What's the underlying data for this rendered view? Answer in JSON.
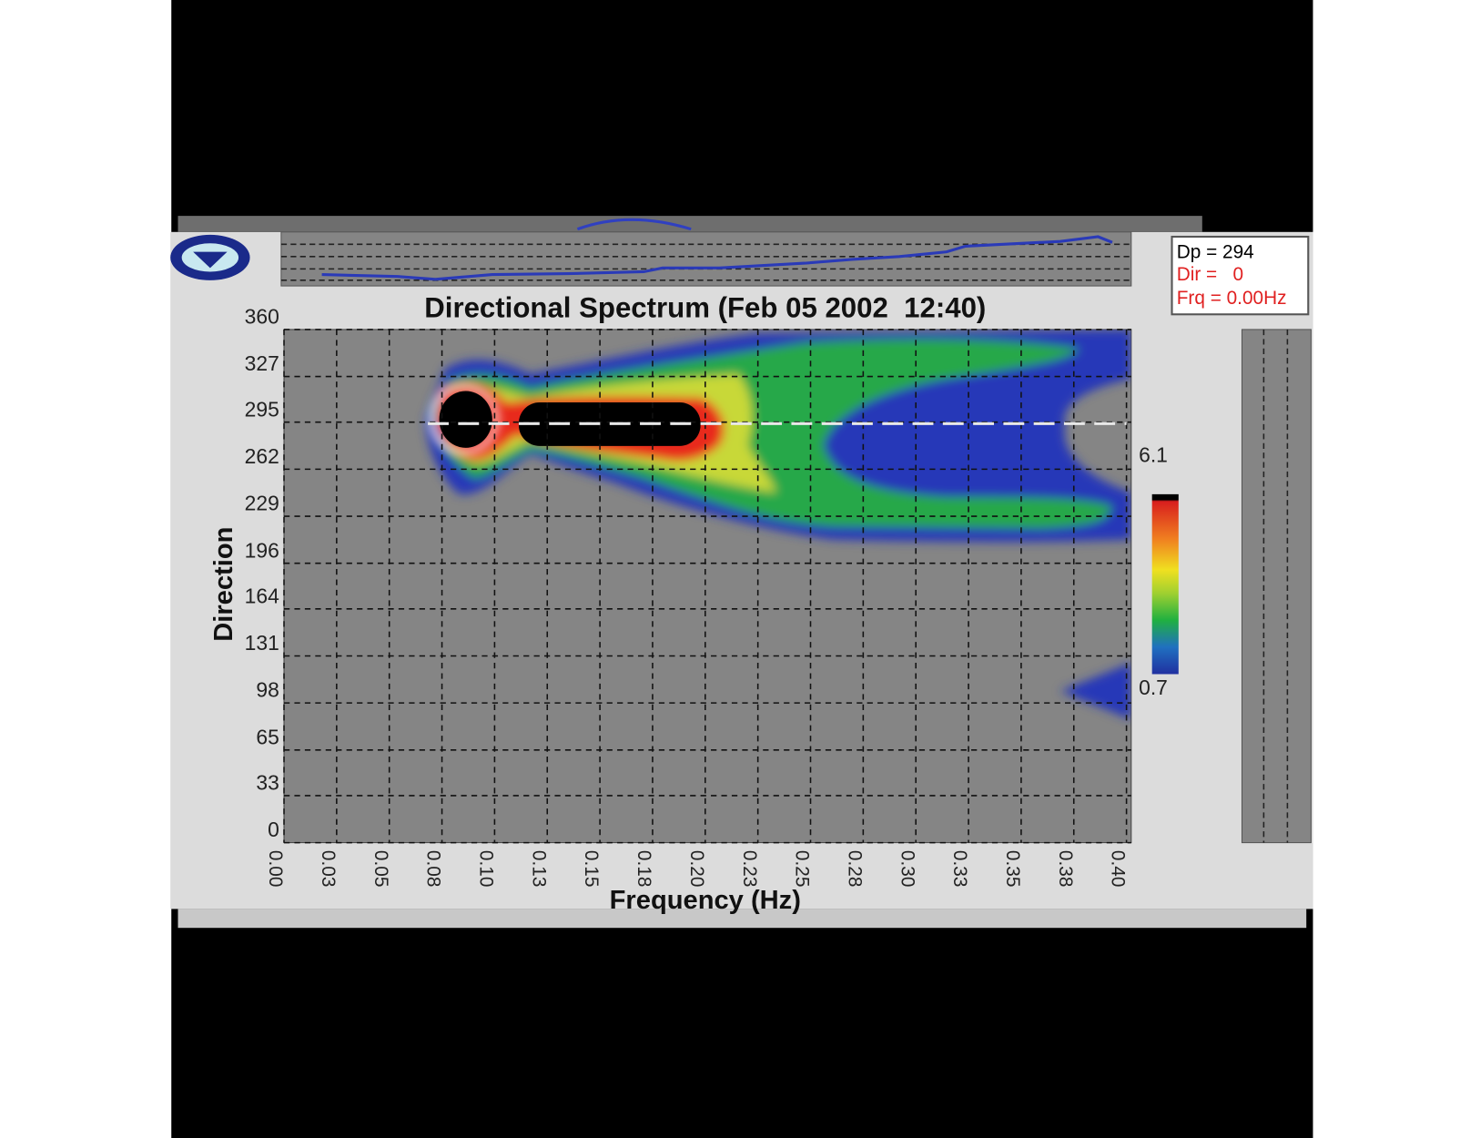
{
  "chart_data": {
    "type": "heatmap",
    "title": "Directional Spectrum (Feb 05 2002  12:40)",
    "x_label": "Frequency (Hz)",
    "y_label": "Direction",
    "xlim": [
      0,
      0.4
    ],
    "ylim": [
      0,
      360
    ],
    "xticks": [
      {
        "value": 0,
        "label": "0.00"
      },
      {
        "value": 0.025,
        "label": "0.03"
      },
      0.05,
      {
        "value": 0.075,
        "label": "0.08"
      },
      {
        "value": 0.1,
        "label": "0.10"
      },
      {
        "value": 0.125,
        "label": "0.13"
      },
      0.15,
      {
        "value": 0.175,
        "label": "0.18"
      },
      {
        "value": 0.2,
        "label": "0.20"
      },
      {
        "value": 0.225,
        "label": "0.23"
      },
      0.25,
      {
        "value": 0.275,
        "label": "0.28"
      },
      {
        "value": 0.3,
        "label": "0.30"
      },
      {
        "value": 0.325,
        "label": "0.33"
      },
      0.35,
      {
        "value": 0.375,
        "label": "0.38"
      },
      {
        "value": 0.4,
        "label": "0.40"
      }
    ],
    "yticks": [
      0,
      33,
      65,
      98,
      131,
      164,
      196,
      229,
      262,
      295,
      327,
      360
    ],
    "grid": true,
    "colorbar": {
      "max": 6.1,
      "min": 0.7
    }
  },
  "readout": {
    "dp_label": "Dp =",
    "dp": 294,
    "dir": "Dir =   0",
    "frq": "Frq = 0.00Hz"
  }
}
